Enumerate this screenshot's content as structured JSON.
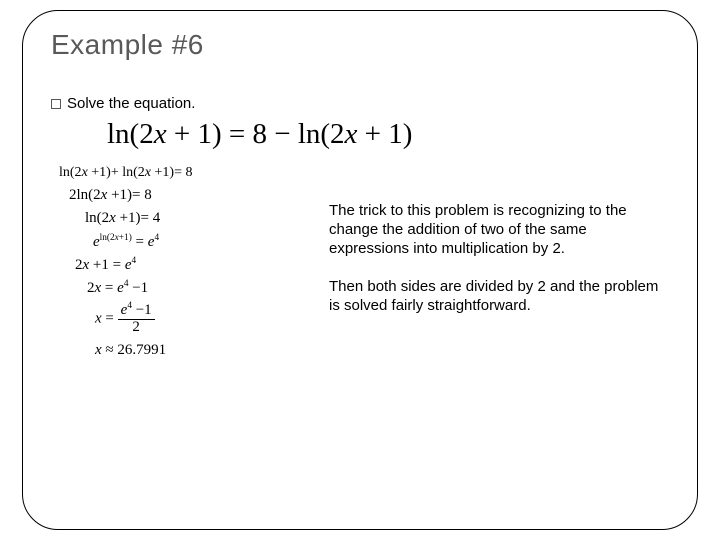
{
  "title": "Example #6",
  "bullet": "Solve the equation.",
  "main_equation": "ln(2x + 1) = 8 − ln(2x + 1)",
  "steps": {
    "s1": "ln(2x + 1) + ln(2x + 1) = 8",
    "s2": "2 ln(2x + 1) = 8",
    "s3": "ln(2x + 1) = 4",
    "s4_left": "e",
    "s4_exp": "ln(2x+1)",
    "s4_eq": " = ",
    "s4_right_base": "e",
    "s4_right_exp": "4",
    "s5_left": "2x + 1 = ",
    "s5_base": "e",
    "s5_exp": "4",
    "s6_left": "2x = ",
    "s6_base": "e",
    "s6_exp": "4",
    "s6_tail": " − 1",
    "s7_lhs": "x = ",
    "s7_num_base": "e",
    "s7_num_exp": "4",
    "s7_num_tail": " − 1",
    "s7_den": "2",
    "s8": "x ≈ 26.7991"
  },
  "explain1": "The trick to this problem is recognizing to the change the addition of two of the same expressions into multiplication by 2.",
  "explain2": "Then both sides are divided by 2 and the problem is solved fairly straightforward.",
  "colors": {
    "title": "#595959",
    "text": "#000000",
    "border": "#000000",
    "background": "#ffffff"
  }
}
